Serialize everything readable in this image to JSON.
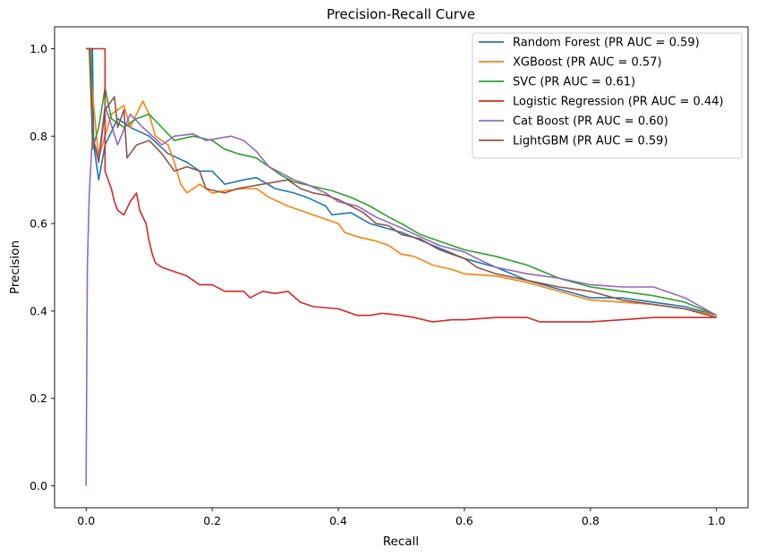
{
  "chart_data": {
    "type": "line",
    "title": "Precision-Recall Curve",
    "xlabel": "Recall",
    "ylabel": "Precision",
    "xlim": [
      -0.05,
      1.05
    ],
    "ylim": [
      -0.05,
      1.05
    ],
    "xticks": [
      0.0,
      0.2,
      0.4,
      0.6,
      0.8,
      1.0
    ],
    "yticks": [
      0.0,
      0.2,
      0.4,
      0.6,
      0.8,
      1.0
    ],
    "xtick_labels": [
      "0.0",
      "0.2",
      "0.4",
      "0.6",
      "0.8",
      "1.0"
    ],
    "ytick_labels": [
      "0.0",
      "0.2",
      "0.4",
      "0.6",
      "0.8",
      "1.0"
    ],
    "grid": false,
    "legend_position": "top-right",
    "series": [
      {
        "name": "Random Forest (PR AUC = 0.59)",
        "color": "#1f77b4",
        "points": [
          [
            0.0,
            1.0
          ],
          [
            0.01,
            1.0
          ],
          [
            0.012,
            0.78
          ],
          [
            0.02,
            0.7
          ],
          [
            0.03,
            0.78
          ],
          [
            0.05,
            0.84
          ],
          [
            0.07,
            0.82
          ],
          [
            0.1,
            0.8
          ],
          [
            0.13,
            0.76
          ],
          [
            0.16,
            0.74
          ],
          [
            0.18,
            0.72
          ],
          [
            0.2,
            0.72
          ],
          [
            0.22,
            0.69
          ],
          [
            0.25,
            0.7
          ],
          [
            0.27,
            0.705
          ],
          [
            0.3,
            0.68
          ],
          [
            0.33,
            0.67
          ],
          [
            0.35,
            0.66
          ],
          [
            0.38,
            0.64
          ],
          [
            0.39,
            0.62
          ],
          [
            0.42,
            0.625
          ],
          [
            0.45,
            0.6
          ],
          [
            0.5,
            0.58
          ],
          [
            0.55,
            0.55
          ],
          [
            0.6,
            0.52
          ],
          [
            0.65,
            0.5
          ],
          [
            0.7,
            0.47
          ],
          [
            0.75,
            0.45
          ],
          [
            0.8,
            0.43
          ],
          [
            0.85,
            0.43
          ],
          [
            0.9,
            0.42
          ],
          [
            0.95,
            0.41
          ],
          [
            1.0,
            0.39
          ]
        ]
      },
      {
        "name": "XGBoost (PR AUC = 0.57)",
        "color": "#ff7f0e",
        "points": [
          [
            0.0,
            1.0
          ],
          [
            0.005,
            1.0
          ],
          [
            0.01,
            0.9
          ],
          [
            0.02,
            0.75
          ],
          [
            0.04,
            0.85
          ],
          [
            0.06,
            0.87
          ],
          [
            0.07,
            0.82
          ],
          [
            0.09,
            0.88
          ],
          [
            0.1,
            0.85
          ],
          [
            0.11,
            0.8
          ],
          [
            0.13,
            0.78
          ],
          [
            0.14,
            0.74
          ],
          [
            0.15,
            0.69
          ],
          [
            0.16,
            0.67
          ],
          [
            0.18,
            0.69
          ],
          [
            0.2,
            0.67
          ],
          [
            0.22,
            0.675
          ],
          [
            0.25,
            0.68
          ],
          [
            0.27,
            0.68
          ],
          [
            0.29,
            0.66
          ],
          [
            0.32,
            0.64
          ],
          [
            0.35,
            0.625
          ],
          [
            0.38,
            0.61
          ],
          [
            0.4,
            0.6
          ],
          [
            0.41,
            0.58
          ],
          [
            0.43,
            0.57
          ],
          [
            0.46,
            0.56
          ],
          [
            0.48,
            0.55
          ],
          [
            0.5,
            0.53
          ],
          [
            0.52,
            0.525
          ],
          [
            0.55,
            0.505
          ],
          [
            0.58,
            0.495
          ],
          [
            0.6,
            0.485
          ],
          [
            0.65,
            0.48
          ],
          [
            0.7,
            0.465
          ],
          [
            0.75,
            0.445
          ],
          [
            0.8,
            0.425
          ],
          [
            0.85,
            0.42
          ],
          [
            0.9,
            0.415
          ],
          [
            0.95,
            0.405
          ],
          [
            1.0,
            0.39
          ]
        ]
      },
      {
        "name": "SVC (PR AUC = 0.61)",
        "color": "#2ca02c",
        "points": [
          [
            0.0,
            1.0
          ],
          [
            0.008,
            1.0
          ],
          [
            0.01,
            0.77
          ],
          [
            0.02,
            0.82
          ],
          [
            0.03,
            0.91
          ],
          [
            0.04,
            0.84
          ],
          [
            0.06,
            0.82
          ],
          [
            0.08,
            0.84
          ],
          [
            0.1,
            0.85
          ],
          [
            0.12,
            0.82
          ],
          [
            0.14,
            0.79
          ],
          [
            0.17,
            0.8
          ],
          [
            0.2,
            0.79
          ],
          [
            0.22,
            0.77
          ],
          [
            0.24,
            0.76
          ],
          [
            0.27,
            0.75
          ],
          [
            0.29,
            0.73
          ],
          [
            0.31,
            0.71
          ],
          [
            0.33,
            0.695
          ],
          [
            0.36,
            0.685
          ],
          [
            0.39,
            0.675
          ],
          [
            0.42,
            0.66
          ],
          [
            0.45,
            0.64
          ],
          [
            0.48,
            0.615
          ],
          [
            0.5,
            0.6
          ],
          [
            0.53,
            0.575
          ],
          [
            0.56,
            0.56
          ],
          [
            0.6,
            0.54
          ],
          [
            0.65,
            0.525
          ],
          [
            0.7,
            0.505
          ],
          [
            0.75,
            0.475
          ],
          [
            0.8,
            0.455
          ],
          [
            0.85,
            0.445
          ],
          [
            0.9,
            0.435
          ],
          [
            0.95,
            0.42
          ],
          [
            1.0,
            0.39
          ]
        ]
      },
      {
        "name": "Logistic Regression (PR AUC = 0.44)",
        "color": "#d62728",
        "points": [
          [
            0.0,
            1.0
          ],
          [
            0.03,
            1.0
          ],
          [
            0.03,
            0.72
          ],
          [
            0.04,
            0.68
          ],
          [
            0.045,
            0.65
          ],
          [
            0.05,
            0.63
          ],
          [
            0.06,
            0.62
          ],
          [
            0.07,
            0.65
          ],
          [
            0.08,
            0.67
          ],
          [
            0.085,
            0.63
          ],
          [
            0.095,
            0.6
          ],
          [
            0.1,
            0.56
          ],
          [
            0.105,
            0.53
          ],
          [
            0.11,
            0.51
          ],
          [
            0.12,
            0.5
          ],
          [
            0.14,
            0.49
          ],
          [
            0.16,
            0.48
          ],
          [
            0.18,
            0.46
          ],
          [
            0.2,
            0.46
          ],
          [
            0.22,
            0.445
          ],
          [
            0.25,
            0.445
          ],
          [
            0.26,
            0.43
          ],
          [
            0.28,
            0.445
          ],
          [
            0.3,
            0.44
          ],
          [
            0.32,
            0.445
          ],
          [
            0.34,
            0.42
          ],
          [
            0.36,
            0.41
          ],
          [
            0.4,
            0.405
          ],
          [
            0.43,
            0.39
          ],
          [
            0.45,
            0.39
          ],
          [
            0.47,
            0.395
          ],
          [
            0.5,
            0.39
          ],
          [
            0.52,
            0.385
          ],
          [
            0.55,
            0.375
          ],
          [
            0.58,
            0.38
          ],
          [
            0.6,
            0.38
          ],
          [
            0.65,
            0.385
          ],
          [
            0.7,
            0.385
          ],
          [
            0.72,
            0.375
          ],
          [
            0.75,
            0.375
          ],
          [
            0.8,
            0.375
          ],
          [
            0.85,
            0.38
          ],
          [
            0.9,
            0.385
          ],
          [
            0.95,
            0.385
          ],
          [
            1.0,
            0.385
          ]
        ]
      },
      {
        "name": "Cat Boost (PR AUC = 0.60)",
        "color": "#9467bd",
        "points": [
          [
            0.0,
            0.0
          ],
          [
            0.002,
            0.5
          ],
          [
            0.005,
            0.67
          ],
          [
            0.01,
            0.8
          ],
          [
            0.02,
            0.75
          ],
          [
            0.03,
            0.87
          ],
          [
            0.05,
            0.78
          ],
          [
            0.07,
            0.85
          ],
          [
            0.09,
            0.82
          ],
          [
            0.12,
            0.78
          ],
          [
            0.14,
            0.8
          ],
          [
            0.17,
            0.805
          ],
          [
            0.19,
            0.79
          ],
          [
            0.21,
            0.795
          ],
          [
            0.23,
            0.8
          ],
          [
            0.25,
            0.79
          ],
          [
            0.27,
            0.765
          ],
          [
            0.29,
            0.73
          ],
          [
            0.31,
            0.715
          ],
          [
            0.33,
            0.7
          ],
          [
            0.35,
            0.69
          ],
          [
            0.38,
            0.67
          ],
          [
            0.4,
            0.65
          ],
          [
            0.43,
            0.64
          ],
          [
            0.46,
            0.615
          ],
          [
            0.5,
            0.59
          ],
          [
            0.53,
            0.57
          ],
          [
            0.56,
            0.55
          ],
          [
            0.6,
            0.535
          ],
          [
            0.62,
            0.52
          ],
          [
            0.65,
            0.5
          ],
          [
            0.7,
            0.485
          ],
          [
            0.75,
            0.475
          ],
          [
            0.8,
            0.46
          ],
          [
            0.85,
            0.455
          ],
          [
            0.9,
            0.455
          ],
          [
            0.95,
            0.43
          ],
          [
            1.0,
            0.39
          ]
        ]
      },
      {
        "name": "LightGBM (PR AUC = 0.59)",
        "color": "#8c564b",
        "points": [
          [
            0.0,
            1.0
          ],
          [
            0.005,
            1.0
          ],
          [
            0.01,
            0.8
          ],
          [
            0.02,
            0.74
          ],
          [
            0.03,
            0.86
          ],
          [
            0.045,
            0.89
          ],
          [
            0.05,
            0.82
          ],
          [
            0.06,
            0.86
          ],
          [
            0.065,
            0.75
          ],
          [
            0.08,
            0.78
          ],
          [
            0.1,
            0.79
          ],
          [
            0.12,
            0.76
          ],
          [
            0.14,
            0.72
          ],
          [
            0.16,
            0.73
          ],
          [
            0.18,
            0.72
          ],
          [
            0.19,
            0.68
          ],
          [
            0.22,
            0.67
          ],
          [
            0.24,
            0.68
          ],
          [
            0.26,
            0.685
          ],
          [
            0.28,
            0.69
          ],
          [
            0.3,
            0.695
          ],
          [
            0.32,
            0.7
          ],
          [
            0.34,
            0.68
          ],
          [
            0.36,
            0.67
          ],
          [
            0.38,
            0.665
          ],
          [
            0.4,
            0.655
          ],
          [
            0.42,
            0.64
          ],
          [
            0.44,
            0.625
          ],
          [
            0.46,
            0.6
          ],
          [
            0.48,
            0.595
          ],
          [
            0.5,
            0.575
          ],
          [
            0.53,
            0.565
          ],
          [
            0.56,
            0.54
          ],
          [
            0.6,
            0.52
          ],
          [
            0.62,
            0.5
          ],
          [
            0.65,
            0.485
          ],
          [
            0.7,
            0.47
          ],
          [
            0.75,
            0.455
          ],
          [
            0.8,
            0.445
          ],
          [
            0.85,
            0.425
          ],
          [
            0.9,
            0.415
          ],
          [
            0.95,
            0.405
          ],
          [
            1.0,
            0.385
          ]
        ]
      }
    ]
  }
}
